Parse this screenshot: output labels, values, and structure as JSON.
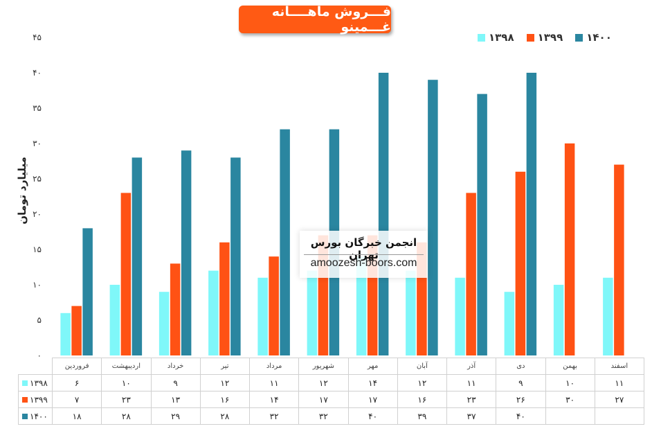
{
  "title": "فـــروش ماهــــانه غـــمینو",
  "ylabel": "میلیارد تومان",
  "watermark": {
    "line1": "انجمن خبرگان بورس تهران",
    "line2": "amoozesh-boors.com"
  },
  "colors": {
    "title_bg": "#ff5a14"
  },
  "chart_data": {
    "type": "bar",
    "title": "فـــروش ماهــــانه غـــمینو",
    "xlabel": "",
    "ylabel": "میلیارد تومان",
    "ylim": [
      0,
      45
    ],
    "yticks": [
      "۰",
      "۵",
      "۱۰",
      "۱۵",
      "۲۰",
      "۲۵",
      "۳۰",
      "۳۵",
      "۴۰",
      "۴۵"
    ],
    "legend_position": "top-right",
    "categories": [
      "فروردین",
      "اردیبهشت",
      "خرداد",
      "تیر",
      "مرداد",
      "شهریور",
      "مهر",
      "آبان",
      "آذر",
      "دی",
      "بهمن",
      "اسفند"
    ],
    "series": [
      {
        "name": "۱۳۹۸",
        "color": "#7ff7f9",
        "values": [
          6,
          10,
          9,
          12,
          11,
          12,
          14,
          12,
          11,
          9,
          10,
          11
        ],
        "labels": [
          "۶",
          "۱۰",
          "۹",
          "۱۲",
          "۱۱",
          "۱۲",
          "۱۴",
          "۱۲",
          "۱۱",
          "۹",
          "۱۰",
          "۱۱"
        ]
      },
      {
        "name": "۱۳۹۹",
        "color": "#ff5214",
        "values": [
          7,
          23,
          13,
          16,
          14,
          17,
          17,
          16,
          23,
          26,
          30,
          27
        ],
        "labels": [
          "۷",
          "۲۳",
          "۱۳",
          "۱۶",
          "۱۴",
          "۱۷",
          "۱۷",
          "۱۶",
          "۲۳",
          "۲۶",
          "۳۰",
          "۲۷"
        ]
      },
      {
        "name": "۱۴۰۰",
        "color": "#2a86a0",
        "values": [
          18,
          28,
          29,
          28,
          32,
          32,
          40,
          39,
          37,
          40,
          null,
          null
        ],
        "labels": [
          "۱۸",
          "۲۸",
          "۲۹",
          "۲۸",
          "۳۲",
          "۳۲",
          "۴۰",
          "۳۹",
          "۳۷",
          "۴۰",
          "",
          ""
        ]
      }
    ]
  }
}
